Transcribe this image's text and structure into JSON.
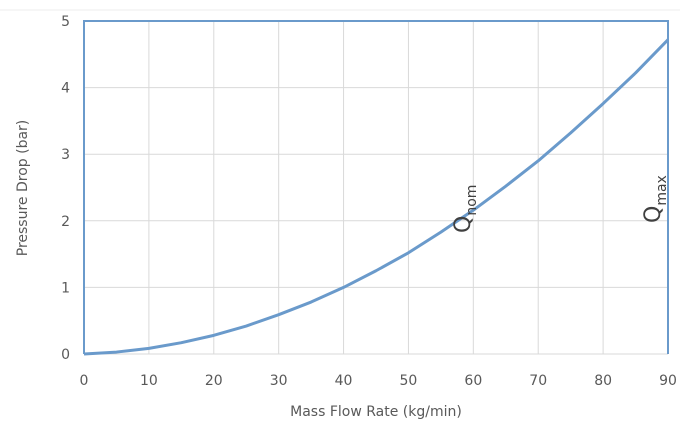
{
  "chart_data": {
    "type": "line",
    "x_label": "Mass Flow Rate (kg/min)",
    "y_label": "Pressure Drop  (bar)",
    "x": [
      0,
      5,
      10,
      15,
      20,
      25,
      30,
      35,
      40,
      45,
      50,
      55,
      60,
      65,
      70,
      75,
      80,
      85,
      90
    ],
    "series": [
      {
        "color": "#6a9acb",
        "values": [
          0,
          0.029,
          0.085,
          0.17,
          0.28,
          0.42,
          0.59,
          0.78,
          1.0,
          1.25,
          1.52,
          1.83,
          2.16,
          2.52,
          2.9,
          3.32,
          3.76,
          4.22,
          4.72
        ]
      }
    ],
    "xlim": [
      0,
      90
    ],
    "ylim": [
      0,
      5
    ],
    "xticks": [
      0,
      10,
      20,
      30,
      40,
      50,
      60,
      70,
      80,
      90
    ],
    "yticks": [
      0,
      1,
      2,
      3,
      4,
      5
    ],
    "grid": true,
    "annotations": [
      {
        "text": "Q",
        "sub": "nom"
      },
      {
        "text": "Q",
        "sub": "max"
      }
    ]
  }
}
